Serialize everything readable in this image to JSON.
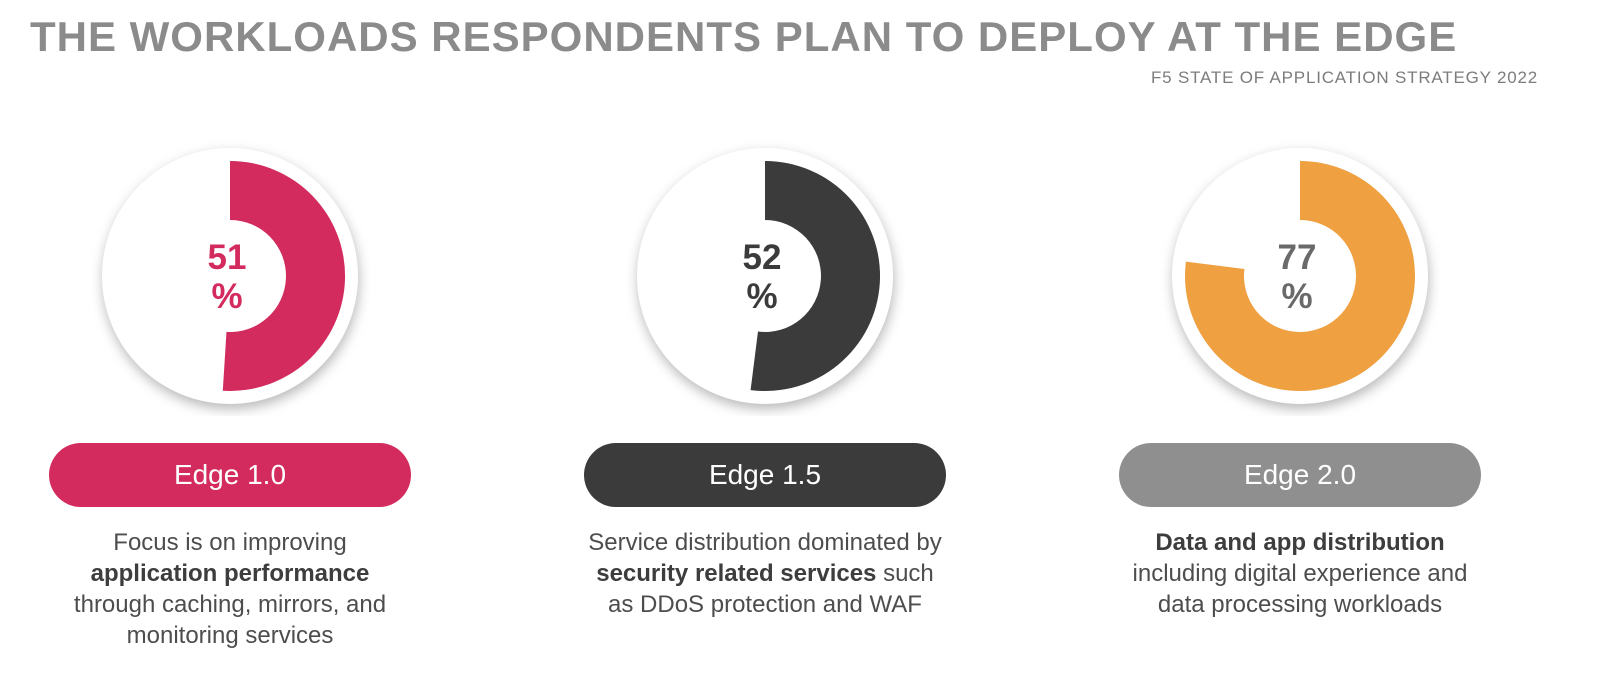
{
  "header": {
    "title": "THE WORKLOADS RESPONDENTS PLAN TO DEPLOY AT THE EDGE",
    "subtitle": "F5 STATE OF APPLICATION STRATEGY 2022"
  },
  "colors": {
    "title_gray": "#8B8B8B",
    "subtitle_gray": "#7C7C7C",
    "body_text": "#4D4D4D",
    "pink": "#D32B5D",
    "dark_gray": "#3B3B3B",
    "orange": "#EFA040",
    "pill_gray": "#8F8F8F",
    "value_gray": "#6A6A6A"
  },
  "chart_data": [
    {
      "type": "donut",
      "label": "Edge 1.0",
      "value": 51,
      "unit": "%",
      "start_angle_deg": 0,
      "direction": "clockwise",
      "arc_color": "#D32B5D",
      "value_text_color": "#D32B5D",
      "pill_color": "#D32B5D",
      "description_lines": [
        [
          {
            "text": "Focus is on improving"
          }
        ],
        [
          {
            "text": "application performance",
            "bold": true
          }
        ],
        [
          {
            "text": "through caching, mirrors, and"
          }
        ],
        [
          {
            "text": "monitoring services"
          }
        ]
      ]
    },
    {
      "type": "donut",
      "label": "Edge 1.5",
      "value": 52,
      "unit": "%",
      "start_angle_deg": 0,
      "direction": "clockwise",
      "arc_color": "#3B3B3B",
      "value_text_color": "#3B3B3B",
      "pill_color": "#3B3B3B",
      "description_lines": [
        [
          {
            "text": "Service distribution dominated by"
          }
        ],
        [
          {
            "text": "security related services",
            "bold": true
          },
          {
            "text": " such"
          }
        ],
        [
          {
            "text": "as DDoS protection and WAF"
          }
        ]
      ]
    },
    {
      "type": "donut",
      "label": "Edge 2.0",
      "value": 77,
      "unit": "%",
      "start_angle_deg": 0,
      "direction": "clockwise",
      "arc_color": "#EFA040",
      "value_text_color": "#6A6A6A",
      "pill_color": "#8F8F8F",
      "description_lines": [
        [
          {
            "text": "Data and app distribution",
            "bold": true
          }
        ],
        [
          {
            "text": "including digital experience and"
          }
        ],
        [
          {
            "text": "data processing workloads"
          }
        ]
      ]
    }
  ]
}
